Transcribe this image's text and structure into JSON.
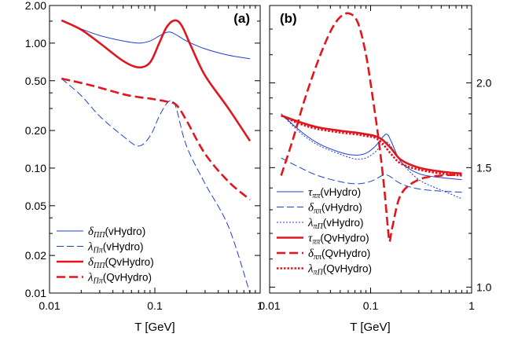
{
  "chart_data": [
    {
      "type": "line",
      "panel_label": "(a)",
      "panel_letter": "a",
      "xlabel": "T [GeV]",
      "ylabel": "",
      "x_scale": "log",
      "y_scale": "log",
      "xlim": [
        0.01,
        1.0
      ],
      "ylim": [
        0.01,
        2.0
      ],
      "x_ticks": [
        {
          "value": 0.01,
          "label": "0.01"
        },
        {
          "value": 0.1,
          "label": "0.1"
        },
        {
          "value": 1.0,
          "label": "1"
        }
      ],
      "y_ticks": [
        {
          "value": 2.0,
          "label": "2.00"
        },
        {
          "value": 1.0,
          "label": "1.00"
        },
        {
          "value": 0.5,
          "label": "0.50"
        },
        {
          "value": 0.2,
          "label": "0.20"
        },
        {
          "value": 0.1,
          "label": "0.10"
        },
        {
          "value": 0.05,
          "label": "0.05"
        },
        {
          "value": 0.02,
          "label": "0.02"
        },
        {
          "value": 0.01,
          "label": "0.01"
        }
      ],
      "legend_position": "bottom-left",
      "series": [
        {
          "name": "δΠΠ(vHydro)",
          "sym": "δ",
          "sub": "ΠΠ",
          "tail": "(vHydro)",
          "color": "#1f3fd1",
          "width": 1,
          "dash": "",
          "points": [
            [
              0.013,
              1.52
            ],
            [
              0.02,
              1.3
            ],
            [
              0.03,
              1.15
            ],
            [
              0.05,
              1.04
            ],
            [
              0.07,
              1.0
            ],
            [
              0.09,
              1.04
            ],
            [
              0.11,
              1.14
            ],
            [
              0.13,
              1.22
            ],
            [
              0.15,
              1.2
            ],
            [
              0.2,
              1.04
            ],
            [
              0.3,
              0.9
            ],
            [
              0.5,
              0.8
            ],
            [
              0.8,
              0.75
            ]
          ]
        },
        {
          "name": "λΠπ(vHydro)",
          "sym": "λ",
          "sub": "Ππ",
          "tail": "(vHydro)",
          "color": "#1f3fd1",
          "width": 1,
          "dash": "9 4",
          "points": [
            [
              0.013,
              0.52
            ],
            [
              0.02,
              0.38
            ],
            [
              0.03,
              0.26
            ],
            [
              0.05,
              0.18
            ],
            [
              0.07,
              0.15
            ],
            [
              0.09,
              0.18
            ],
            [
              0.11,
              0.26
            ],
            [
              0.13,
              0.33
            ],
            [
              0.145,
              0.345
            ],
            [
              0.16,
              0.3
            ],
            [
              0.2,
              0.15
            ],
            [
              0.3,
              0.075
            ],
            [
              0.5,
              0.034
            ],
            [
              0.8,
              0.01
            ]
          ]
        },
        {
          "name": "δΠΠ(QvHydro)",
          "sym": "δ",
          "sub": "ΠΠ",
          "tail": "(QvHydro)",
          "color": "#e0161e",
          "width": 2.6,
          "dash": "",
          "points": [
            [
              0.013,
              1.52
            ],
            [
              0.02,
              1.28
            ],
            [
              0.03,
              1.0
            ],
            [
              0.05,
              0.72
            ],
            [
              0.07,
              0.64
            ],
            [
              0.09,
              0.7
            ],
            [
              0.11,
              1.0
            ],
            [
              0.13,
              1.35
            ],
            [
              0.155,
              1.52
            ],
            [
              0.18,
              1.38
            ],
            [
              0.22,
              0.95
            ],
            [
              0.3,
              0.55
            ],
            [
              0.5,
              0.3
            ],
            [
              0.8,
              0.165
            ]
          ]
        },
        {
          "name": "λΠπ(QvHydro)",
          "sym": "λ",
          "sub": "Ππ",
          "tail": "(QvHydro)",
          "color": "#e0161e",
          "width": 2.6,
          "dash": "11 5",
          "points": [
            [
              0.013,
              0.52
            ],
            [
              0.02,
              0.48
            ],
            [
              0.03,
              0.44
            ],
            [
              0.05,
              0.39
            ],
            [
              0.07,
              0.37
            ],
            [
              0.09,
              0.36
            ],
            [
              0.11,
              0.35
            ],
            [
              0.13,
              0.34
            ],
            [
              0.16,
              0.32
            ],
            [
              0.2,
              0.24
            ],
            [
              0.3,
              0.13
            ],
            [
              0.5,
              0.078
            ],
            [
              0.8,
              0.056
            ]
          ]
        }
      ]
    },
    {
      "type": "line",
      "panel_label": "(b)",
      "panel_letter": "b",
      "xlabel": "T [GeV]",
      "ylabel": "",
      "x_scale": "log",
      "y_scale": "log",
      "xlim": [
        0.01,
        1.0
      ],
      "ylim": [
        0.98,
        2.6
      ],
      "x_ticks": [
        {
          "value": 0.01,
          "label": "0.01"
        },
        {
          "value": 0.1,
          "label": "0.1"
        },
        {
          "value": 1.0,
          "label": "1"
        }
      ],
      "y_ticks_right": [
        {
          "value": 2.0,
          "label": "2.0"
        },
        {
          "value": 1.5,
          "label": "1.5"
        },
        {
          "value": 1.0,
          "label": "1.0"
        }
      ],
      "legend_position": "bottom-left",
      "series": [
        {
          "name": "τππ(vHydro)",
          "sym": "τ",
          "sub": "ππ",
          "tail": "(vHydro)",
          "color": "#1f3fd1",
          "width": 1,
          "dash": "",
          "points": [
            [
              0.013,
              1.8
            ],
            [
              0.02,
              1.7
            ],
            [
              0.03,
              1.63
            ],
            [
              0.05,
              1.58
            ],
            [
              0.07,
              1.565
            ],
            [
              0.09,
              1.575
            ],
            [
              0.11,
              1.61
            ],
            [
              0.13,
              1.66
            ],
            [
              0.145,
              1.68
            ],
            [
              0.16,
              1.64
            ],
            [
              0.2,
              1.53
            ],
            [
              0.3,
              1.47
            ],
            [
              0.5,
              1.45
            ],
            [
              0.8,
              1.44
            ]
          ]
        },
        {
          "name": "δππ(vHydro)",
          "sym": "δ",
          "sub": "ππ",
          "tail": "(vHydro)",
          "color": "#1f3fd1",
          "width": 1,
          "dash": "9 4",
          "points": [
            [
              0.013,
              1.55
            ],
            [
              0.02,
              1.5
            ],
            [
              0.03,
              1.46
            ],
            [
              0.05,
              1.43
            ],
            [
              0.07,
              1.42
            ],
            [
              0.09,
              1.425
            ],
            [
              0.11,
              1.44
            ],
            [
              0.13,
              1.46
            ],
            [
              0.15,
              1.46
            ],
            [
              0.2,
              1.42
            ],
            [
              0.3,
              1.395
            ],
            [
              0.5,
              1.385
            ],
            [
              0.8,
              1.38
            ]
          ]
        },
        {
          "name": "λπΠ(vHydro)",
          "sym": "λ",
          "sub": "πΠ",
          "tail": "(vHydro)",
          "color": "#1f3fd1",
          "width": 1,
          "dash": "2 2",
          "points": [
            [
              0.013,
              1.8
            ],
            [
              0.02,
              1.69
            ],
            [
              0.03,
              1.62
            ],
            [
              0.05,
              1.57
            ],
            [
              0.07,
              1.545
            ],
            [
              0.09,
              1.55
            ],
            [
              0.11,
              1.58
            ],
            [
              0.13,
              1.62
            ],
            [
              0.15,
              1.63
            ],
            [
              0.2,
              1.53
            ],
            [
              0.3,
              1.44
            ],
            [
              0.5,
              1.39
            ],
            [
              0.8,
              1.35
            ]
          ]
        },
        {
          "name": "τππ(QvHydro)",
          "sym": "τ",
          "sub": "ππ",
          "tail": "(QvHydro)",
          "color": "#e0161e",
          "width": 2.6,
          "dash": "",
          "points": [
            [
              0.013,
              1.79
            ],
            [
              0.02,
              1.75
            ],
            [
              0.03,
              1.72
            ],
            [
              0.05,
              1.7
            ],
            [
              0.07,
              1.69
            ],
            [
              0.09,
              1.68
            ],
            [
              0.11,
              1.67
            ],
            [
              0.13,
              1.65
            ],
            [
              0.16,
              1.6
            ],
            [
              0.2,
              1.54
            ],
            [
              0.3,
              1.5
            ],
            [
              0.5,
              1.48
            ],
            [
              0.8,
              1.47
            ]
          ]
        },
        {
          "name": "δππ(QvHydro)",
          "sym": "δ",
          "sub": "ππ",
          "tail": "(QvHydro)",
          "color": "#e0161e",
          "width": 2.6,
          "dash": "11 5",
          "points": [
            [
              0.013,
              1.46
            ],
            [
              0.017,
              1.65
            ],
            [
              0.022,
              1.88
            ],
            [
              0.03,
              2.15
            ],
            [
              0.04,
              2.38
            ],
            [
              0.05,
              2.5
            ],
            [
              0.062,
              2.53
            ],
            [
              0.075,
              2.45
            ],
            [
              0.09,
              2.2
            ],
            [
              0.105,
              1.9
            ],
            [
              0.12,
              1.65
            ],
            [
              0.135,
              1.42
            ],
            [
              0.15,
              1.2
            ],
            [
              0.155,
              1.17
            ],
            [
              0.165,
              1.23
            ],
            [
              0.2,
              1.37
            ],
            [
              0.3,
              1.44
            ],
            [
              0.5,
              1.46
            ],
            [
              0.8,
              1.465
            ]
          ]
        },
        {
          "name": "λπΠ(QvHydro)",
          "sym": "λ",
          "sub": "πΠ",
          "tail": "(QvHydro)",
          "color": "#e0161e",
          "width": 2.6,
          "dash": "2.5 2",
          "points": [
            [
              0.013,
              1.79
            ],
            [
              0.02,
              1.74
            ],
            [
              0.03,
              1.71
            ],
            [
              0.05,
              1.69
            ],
            [
              0.07,
              1.68
            ],
            [
              0.09,
              1.67
            ],
            [
              0.11,
              1.66
            ],
            [
              0.13,
              1.63
            ],
            [
              0.16,
              1.57
            ],
            [
              0.2,
              1.52
            ],
            [
              0.3,
              1.49
            ],
            [
              0.5,
              1.47
            ],
            [
              0.8,
              1.46
            ]
          ]
        }
      ]
    }
  ]
}
